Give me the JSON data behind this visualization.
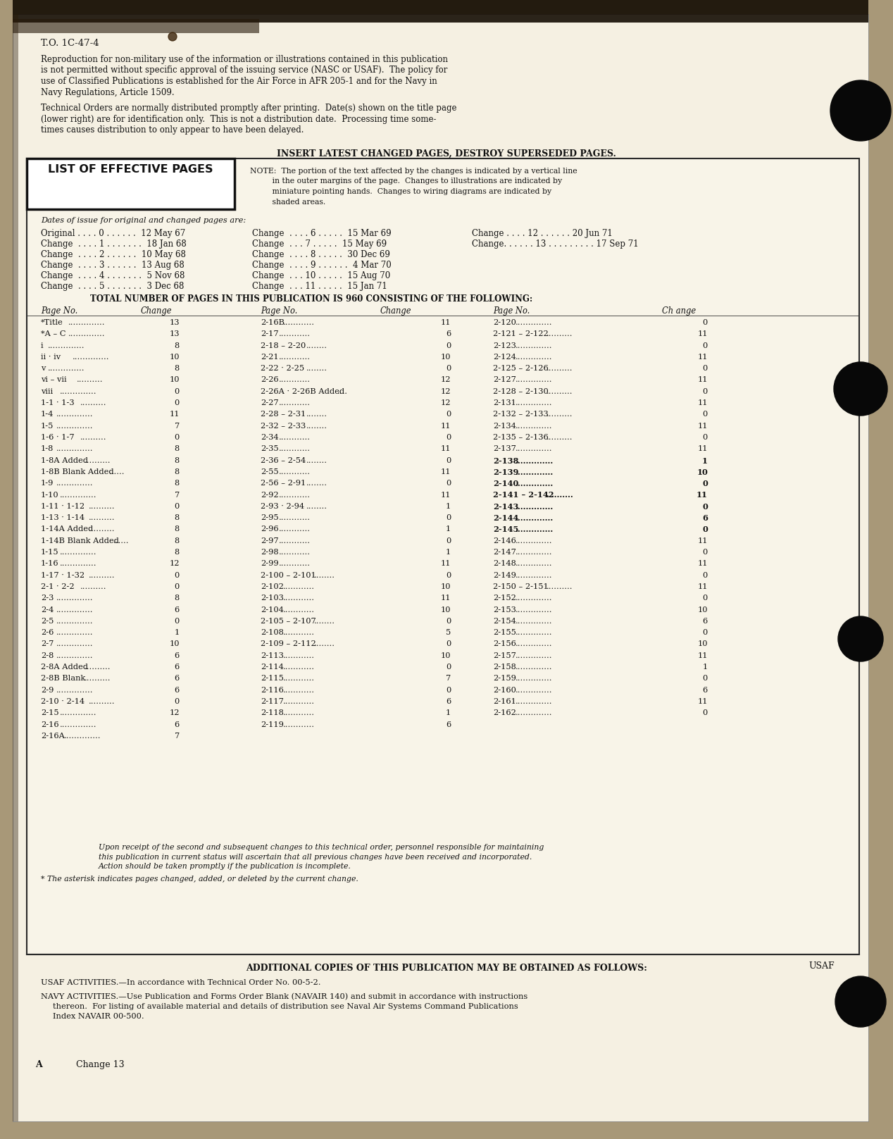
{
  "top_label": "T.O. 1C-47-4",
  "para1_lines": [
    "Reproduction for non-military use of the information or illustrations contained in this publication",
    "is not permitted without specific approval of the issuing service (NASC or USAF).  The policy for",
    "use of Classified Publications is established for the Air Force in AFR 205-1 and for the Navy in",
    "Navy Regulations, Article 1509."
  ],
  "para2_lines": [
    "Technical Orders are normally distributed promptly after printing.  Date(s) shown on the title page",
    "(lower right) are for identification only.  This is not a distribution date.  Processing time some-",
    "times causes distribution to only appear to have been delayed."
  ],
  "insert_header": "INSERT LATEST CHANGED PAGES, DESTROY SUPERSEDED PAGES.",
  "list_box_label": "LIST OF EFFECTIVE PAGES",
  "note_lines": [
    "NOTE:  The portion of the text affected by the changes is indicated by a vertical line",
    "         in the outer margins of the page.  Changes to illustrations are indicated by",
    "         miniature pointing hands.  Changes to wiring diagrams are indicated by",
    "         shaded areas."
  ],
  "dates_label": "Dates of issue for original and changed pages are:",
  "date_col1": [
    "Original . . . . 0 . . . . . .  12 May 67",
    "Change  . . . . 1 . . . . . . .  18 Jan 68",
    "Change  . . . . 2 . . . . . .  10 May 68",
    "Change  . . . . 3 . . . . . .  13 Aug 68",
    "Change  . . . . 4 . . . . . . .  5 Nov 68",
    "Change  . . . . 5 . . . . . . .  3 Dec 68"
  ],
  "date_col2": [
    "Change  . . . . 6 . . . . .  15 Mar 69",
    "Change  . . . 7 . . . . .  15 May 69",
    "Change  . . . . 8 . . . . .  30 Dec 69",
    "Change  . . . . 9 . . . . . .  4 Mar 70",
    "Change  . . . 10 . . . . .  15 Aug 70",
    "Change  . . . 11 . . . . .  15 Jan 71"
  ],
  "date_col3": [
    "Change . . . . 12 . . . . . . 20 Jun 71",
    "Change. . . . . . 13 . . . . . . . . . 17 Sep 71"
  ],
  "total_line": "TOTAL NUMBER OF PAGES IN THIS PUBLICATION IS 960 CONSISTING OF THE FOLLOWING:",
  "col1": [
    [
      "*Title",
      "13"
    ],
    [
      "*A – C",
      "13"
    ],
    [
      "i",
      "8"
    ],
    [
      "ii · iv",
      "10"
    ],
    [
      "v",
      "8"
    ],
    [
      "vi – vii",
      "10"
    ],
    [
      "viii",
      "0"
    ],
    [
      "1-1 · 1-3",
      "0"
    ],
    [
      "1-4",
      "11"
    ],
    [
      "1-5",
      "7"
    ],
    [
      "1-6 · 1-7",
      "0"
    ],
    [
      "1-8",
      "8"
    ],
    [
      "1-8A Added",
      "8"
    ],
    [
      "1-8B Blank Added",
      "8"
    ],
    [
      "1-9",
      "8"
    ],
    [
      "1-10",
      "7"
    ],
    [
      "1-11 · 1-12",
      "0"
    ],
    [
      "1-13 · 1-14",
      "8"
    ],
    [
      "1-14A Added",
      "8"
    ],
    [
      "1-14B Blank Added",
      "8"
    ],
    [
      "1-15",
      "8"
    ],
    [
      "1-16",
      "12"
    ],
    [
      "1-17 · 1-32",
      "0"
    ],
    [
      "2-1 · 2-2",
      "0"
    ],
    [
      "2-3",
      "8"
    ],
    [
      "2-4",
      "6"
    ],
    [
      "2-5",
      "0"
    ],
    [
      "2-6",
      "1"
    ],
    [
      "2-7",
      "10"
    ],
    [
      "2-8",
      "6"
    ],
    [
      "2-8A Added",
      "6"
    ],
    [
      "2-8B Blank",
      "6"
    ],
    [
      "2-9",
      "6"
    ],
    [
      "2-10 · 2-14",
      "0"
    ],
    [
      "2-15",
      "12"
    ],
    [
      "2-16",
      "6"
    ],
    [
      "2-16A",
      "7"
    ]
  ],
  "col2": [
    [
      "2-16B",
      "11"
    ],
    [
      "2-17",
      "6"
    ],
    [
      "2-18 – 2-20",
      "0"
    ],
    [
      "2-21",
      "10"
    ],
    [
      "2-22 · 2-25",
      "0"
    ],
    [
      "2-26",
      "12"
    ],
    [
      "2-26A · 2-26B Added",
      "12"
    ],
    [
      "2-27",
      "12"
    ],
    [
      "2-28 – 2-31",
      "0"
    ],
    [
      "2-32 – 2-33",
      "11"
    ],
    [
      "2-34",
      "0"
    ],
    [
      "2-35",
      "11"
    ],
    [
      "2-36 – 2-54",
      "0"
    ],
    [
      "2-55",
      "11"
    ],
    [
      "2-56 – 2-91",
      "0"
    ],
    [
      "2-92",
      "11"
    ],
    [
      "2-93 · 2-94",
      "1"
    ],
    [
      "2-95",
      "0"
    ],
    [
      "2-96",
      "1"
    ],
    [
      "2-97",
      "0"
    ],
    [
      "2-98",
      "1"
    ],
    [
      "2-99",
      "11"
    ],
    [
      "2-100 – 2-101",
      "0"
    ],
    [
      "2-102",
      "10"
    ],
    [
      "2-103",
      "11"
    ],
    [
      "2-104",
      "10"
    ],
    [
      "2-105 – 2-107",
      "0"
    ],
    [
      "2-108",
      "5"
    ],
    [
      "2-109 – 2-112",
      "0"
    ],
    [
      "2-113",
      "10"
    ],
    [
      "2-114",
      "0"
    ],
    [
      "2-115",
      "7"
    ],
    [
      "2-116",
      "0"
    ],
    [
      "2-117",
      "6"
    ],
    [
      "2-118",
      "1"
    ],
    [
      "2-119",
      "6"
    ]
  ],
  "col3": [
    [
      "2-120",
      "0"
    ],
    [
      "2-121 – 2-122",
      "11"
    ],
    [
      "2-123",
      "0"
    ],
    [
      "2-124",
      "11"
    ],
    [
      "2-125 – 2-126",
      "0"
    ],
    [
      "2-127",
      "11"
    ],
    [
      "2-128 – 2-130",
      "0"
    ],
    [
      "2-131",
      "11"
    ],
    [
      "2-132 – 2-133",
      "0"
    ],
    [
      "2-134",
      "11"
    ],
    [
      "2-135 – 2-136",
      "0"
    ],
    [
      "2-137",
      "11"
    ],
    [
      "2-138",
      "1"
    ],
    [
      "2-139",
      "10"
    ],
    [
      "2-140",
      "0"
    ],
    [
      "2-141 – 2-142",
      "11"
    ],
    [
      "2-143",
      "0"
    ],
    [
      "2-144",
      "6"
    ],
    [
      "2-145",
      "0"
    ],
    [
      "2-146",
      "11"
    ],
    [
      "2-147",
      "0"
    ],
    [
      "2-148",
      "11"
    ],
    [
      "2-149",
      "0"
    ],
    [
      "2-150 – 2-151",
      "11"
    ],
    [
      "2-152",
      "0"
    ],
    [
      "2-153",
      "10"
    ],
    [
      "2-154",
      "6"
    ],
    [
      "2-155",
      "0"
    ],
    [
      "2-156",
      "10"
    ],
    [
      "2-157",
      "11"
    ],
    [
      "2-158",
      "1"
    ],
    [
      "2-159",
      "0"
    ],
    [
      "2-160",
      "6"
    ],
    [
      "2-161",
      "11"
    ],
    [
      "2-162",
      "0"
    ]
  ],
  "bold_col3": [
    "2-138",
    "2-139",
    "2-140",
    "2-141 – 2-142",
    "2-143",
    "2-144",
    "2-145"
  ],
  "bold_col2": [
    "2-93 · 2-94",
    "2-95",
    "2-96",
    "2-97",
    "2-98",
    "2-99",
    "2-100 – 2-101",
    "2-102",
    "2-103",
    "2-104",
    "2-105 – 2-107",
    "2-108",
    "2-109 – 2-112",
    "2-113",
    "2-114",
    "2-115",
    "2-116",
    "2-117",
    "2-118",
    "2-119"
  ],
  "footer_italic": [
    "Upon receipt of the second and subsequent changes to this technical order, personnel responsible for maintaining",
    "this publication in current status will ascertain that all previous changes have been received and incorporated.",
    "Action should be taken promptly if the publication is incomplete."
  ],
  "asterisk_note": "* The asterisk indicates pages changed, added, or deleted by the current change.",
  "additional_copies": "ADDITIONAL COPIES OF THIS PUBLICATION MAY BE OBTAINED AS FOLLOWS:",
  "usaf_line": "USAF ACTIVITIES.—In accordance with Technical Order No. 00-5-2.",
  "navy_lines": [
    "NAVY ACTIVITIES.—Use Publication and Forms Order Blank (NAVAIR 140) and submit in accordance with instructions",
    "thereon.  For listing of available material and details of distribution see Naval Air Systems Command Publications",
    "Index NAVAIR 00-500."
  ],
  "usaf_stamp": "USAF",
  "bottom_a": "A",
  "bottom_change": "Change 13",
  "paper_color": "#f5f0e2",
  "bg_color": "#a89878",
  "text_color": "#111111"
}
